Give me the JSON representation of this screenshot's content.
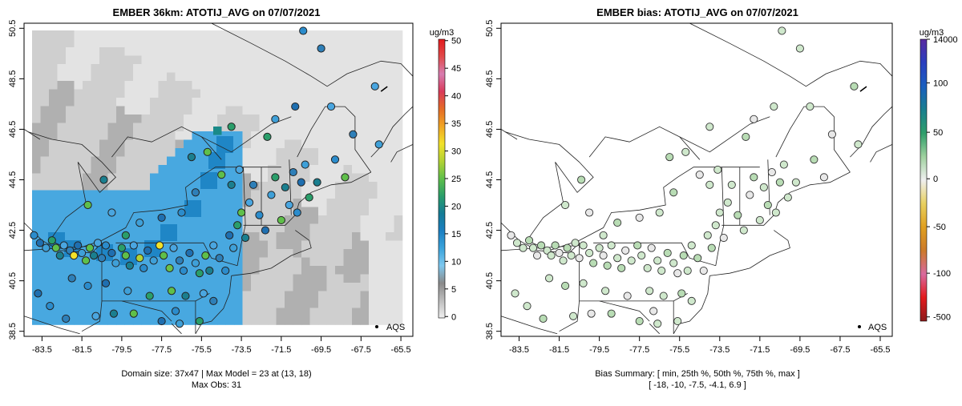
{
  "chart_data": [
    {
      "type": "map",
      "title": "EMBER 36km: ATOTIJ_AVG on 07/07/2021",
      "x_ticks": [
        "-83.5",
        "-81.5",
        "-79.5",
        "-77.5",
        "-75.5",
        "-73.5",
        "-71.5",
        "-69.5",
        "-67.5",
        "-65.5"
      ],
      "y_ticks": [
        "38.5",
        "40.5",
        "42.5",
        "44.5",
        "46.5",
        "48.5",
        "50.5"
      ],
      "xlim": [
        -84.4,
        -64.9
      ],
      "ylim": [
        38.3,
        50.7
      ],
      "legend_label": "AQS",
      "colorbar": {
        "units": "ug/m3",
        "ticks": [
          "0",
          "5",
          "10",
          "15",
          "20",
          "25",
          "30",
          "35",
          "40",
          "45",
          "50"
        ],
        "colors": [
          "#f0f0f0",
          "#bdbdbd",
          "#8a8a8a",
          "#7ec8ef",
          "#3aa3db",
          "#1b7fc2",
          "#157c96",
          "#2a9e6a",
          "#5fbf4a",
          "#b3d234",
          "#f2e22a",
          "#f0a524",
          "#e56b26",
          "#d93a5a",
          "#d77db0",
          "#e14a4a",
          "#e31a1c"
        ]
      },
      "caption_lines": [
        "Domain size: 37x47 | Max Model = 23 at (13, 18)",
        "Max Obs: 31"
      ],
      "stats": {
        "domain_cols": 37,
        "domain_rows": 47,
        "max_model": 23,
        "max_model_cell": [
          13,
          18
        ],
        "max_obs": 31
      }
    },
    {
      "type": "map",
      "title": "EMBER bias: ATOTIJ_AVG on 07/07/2021",
      "x_ticks": [
        "-83.5",
        "-81.5",
        "-79.5",
        "-77.5",
        "-75.5",
        "-73.5",
        "-71.5",
        "-69.5",
        "-67.5",
        "-65.5"
      ],
      "y_ticks": [
        "38.5",
        "40.5",
        "42.5",
        "44.5",
        "46.5",
        "48.5",
        "50.5"
      ],
      "xlim": [
        -84.4,
        -64.9
      ],
      "ylim": [
        38.3,
        50.7
      ],
      "legend_label": "AQS",
      "colorbar": {
        "units": "ug/m3",
        "ticks": [
          "14000",
          "100",
          "50",
          "0",
          "-50",
          "-100",
          "-500"
        ],
        "colors": [
          "#8b1a1a",
          "#e31a1c",
          "#d86a9e",
          "#cc7a2a",
          "#e0a020",
          "#e8d060",
          "#f0f0f0",
          "#9fd19f",
          "#2e9e6a",
          "#1a7f8f",
          "#1a5fbf",
          "#2a3fbf",
          "#5a2aa0"
        ]
      },
      "caption_lines": [
        "Bias Summary: [ min, 25th %, 50th %, 75th %, max ]",
        "[ -18,   -10,   -7.5,   -4.1,   6.9 ]"
      ],
      "bias_summary": {
        "min": -18,
        "p25": -10,
        "p50": -7.5,
        "p75": -4.1,
        "max": 6.9
      }
    }
  ],
  "colors": {
    "grid_light": "#e3e3e3",
    "grid_mid": "#cfcfcf",
    "grid_dark": "#b0b0b0",
    "low_blue": "#48a8e0",
    "mid_blue": "#1f86c6",
    "teal": "#1a8a88",
    "bias_fill": "#cfe8cc"
  }
}
